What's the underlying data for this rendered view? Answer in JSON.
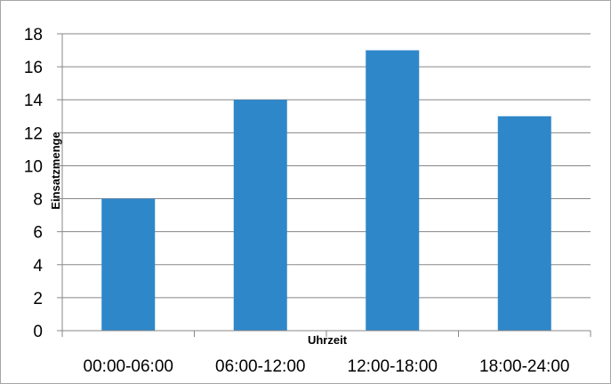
{
  "chart_data": {
    "type": "bar",
    "categories": [
      "00:00-06:00",
      "06:00-12:00",
      "12:00-18:00",
      "18:00-24:00"
    ],
    "values": [
      8,
      14,
      17,
      13
    ],
    "title": "",
    "xlabel": "Uhrzeit",
    "ylabel": "Einsatzmenge",
    "ylim": [
      0,
      18
    ],
    "yticks": [
      0,
      2,
      4,
      6,
      8,
      10,
      12,
      14,
      16,
      18
    ],
    "grid": true,
    "legend": "none",
    "bar_color": "#2e87c9",
    "grid_color": "#878787"
  }
}
